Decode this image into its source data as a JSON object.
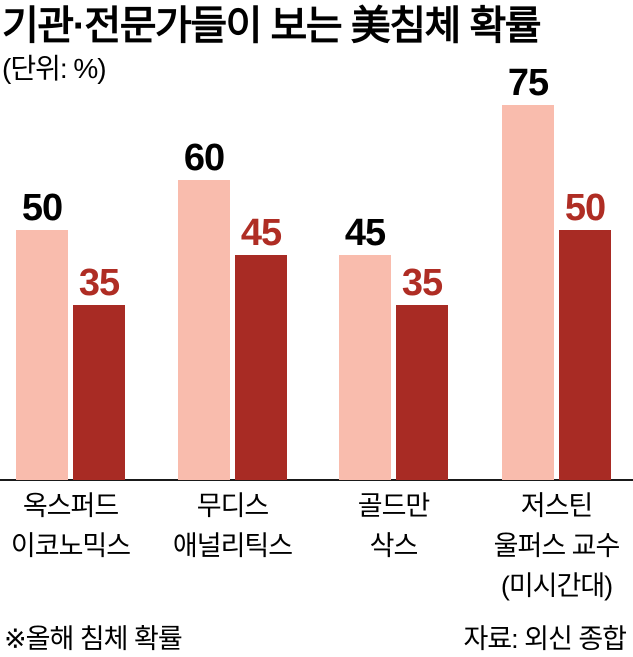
{
  "chart_data": {
    "type": "bar",
    "title": "기관·전문가들이 보는 美침체 확률",
    "unit_label": "(단위: %)",
    "categories": [
      {
        "label": "옥스퍼드 이코노믹스",
        "lines": [
          "옥스퍼드",
          "이코노믹스"
        ]
      },
      {
        "label": "무디스 애널리틱스",
        "lines": [
          "무디스",
          "애널리틱스"
        ]
      },
      {
        "label": "골드만 삭스",
        "lines": [
          "골드만",
          "삭스"
        ]
      },
      {
        "label": "저스틴 울퍼스 교수 (미시간대)",
        "lines": [
          "저스틴",
          "울퍼스 교수",
          "(미시간대)"
        ]
      }
    ],
    "series": [
      {
        "name": "light-pink-bar",
        "color": "#f9bcad",
        "label_color": "#000000",
        "values": [
          50,
          60,
          45,
          75
        ]
      },
      {
        "name": "dark-red-bar",
        "color": "#a82b24",
        "label_color": "#af2d24",
        "values": [
          35,
          45,
          35,
          50
        ]
      }
    ],
    "ylim": [
      0,
      80
    ],
    "grid": false,
    "legend": "none",
    "footnote": "※올해 침체 확률",
    "source": "자료: 외신 종합"
  },
  "colors": {
    "background": "#ffffff",
    "axis_line": "#1a1a1a",
    "title_color": "#000000"
  }
}
